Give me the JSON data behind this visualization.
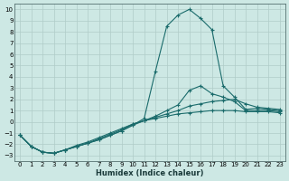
{
  "bg_color": "#cde8e4",
  "grid_color": "#b0ccc8",
  "line_color": "#1a6b6b",
  "xlabel": "Humidex (Indice chaleur)",
  "xlim": [
    -0.5,
    23.5
  ],
  "ylim": [
    -3.5,
    10.5
  ],
  "xticks": [
    0,
    1,
    2,
    3,
    4,
    5,
    6,
    7,
    8,
    9,
    10,
    11,
    12,
    13,
    14,
    15,
    16,
    17,
    18,
    19,
    20,
    21,
    22,
    23
  ],
  "yticks": [
    -3,
    -2,
    -1,
    0,
    1,
    2,
    3,
    4,
    5,
    6,
    7,
    8,
    9,
    10
  ],
  "series": [
    {
      "x": [
        0,
        1,
        2,
        3,
        4,
        5,
        6,
        7,
        8,
        9,
        10,
        11,
        12,
        13,
        14,
        15,
        16,
        17,
        18,
        19,
        20,
        21,
        22,
        23
      ],
      "y": [
        -1.2,
        -2.2,
        -2.7,
        -2.8,
        -2.5,
        -2.2,
        -1.9,
        -1.6,
        -1.2,
        -0.8,
        -0.3,
        0.3,
        4.5,
        8.5,
        9.5,
        10.0,
        9.2,
        8.2,
        3.2,
        2.2,
        1.1,
        1.2,
        1.1,
        1.0
      ]
    },
    {
      "x": [
        0,
        1,
        2,
        3,
        4,
        5,
        6,
        7,
        8,
        9,
        10,
        11,
        12,
        13,
        14,
        15,
        16,
        17,
        18,
        19,
        20,
        21,
        22,
        23
      ],
      "y": [
        -1.2,
        -2.2,
        -2.7,
        -2.8,
        -2.5,
        -2.2,
        -1.9,
        -1.6,
        -1.2,
        -0.8,
        -0.3,
        0.1,
        0.5,
        1.0,
        1.5,
        2.8,
        3.2,
        2.5,
        2.2,
        1.8,
        1.0,
        1.0,
        1.0,
        0.9
      ]
    },
    {
      "x": [
        0,
        1,
        2,
        3,
        4,
        5,
        6,
        7,
        8,
        9,
        10,
        11,
        12,
        13,
        14,
        15,
        16,
        17,
        18,
        19,
        20,
        21,
        22,
        23
      ],
      "y": [
        -1.2,
        -2.2,
        -2.7,
        -2.8,
        -2.5,
        -2.2,
        -1.9,
        -1.5,
        -1.1,
        -0.7,
        -0.2,
        0.1,
        0.4,
        0.7,
        1.0,
        1.4,
        1.6,
        1.8,
        1.9,
        2.0,
        1.6,
        1.3,
        1.2,
        1.1
      ]
    },
    {
      "x": [
        0,
        1,
        2,
        3,
        4,
        5,
        6,
        7,
        8,
        9,
        10,
        11,
        12,
        13,
        14,
        15,
        16,
        17,
        18,
        19,
        20,
        21,
        22,
        23
      ],
      "y": [
        -1.2,
        -2.2,
        -2.7,
        -2.8,
        -2.5,
        -2.1,
        -1.8,
        -1.4,
        -1.0,
        -0.6,
        -0.2,
        0.1,
        0.3,
        0.5,
        0.7,
        0.8,
        0.9,
        1.0,
        1.0,
        1.0,
        0.9,
        0.9,
        0.9,
        0.8
      ]
    }
  ]
}
